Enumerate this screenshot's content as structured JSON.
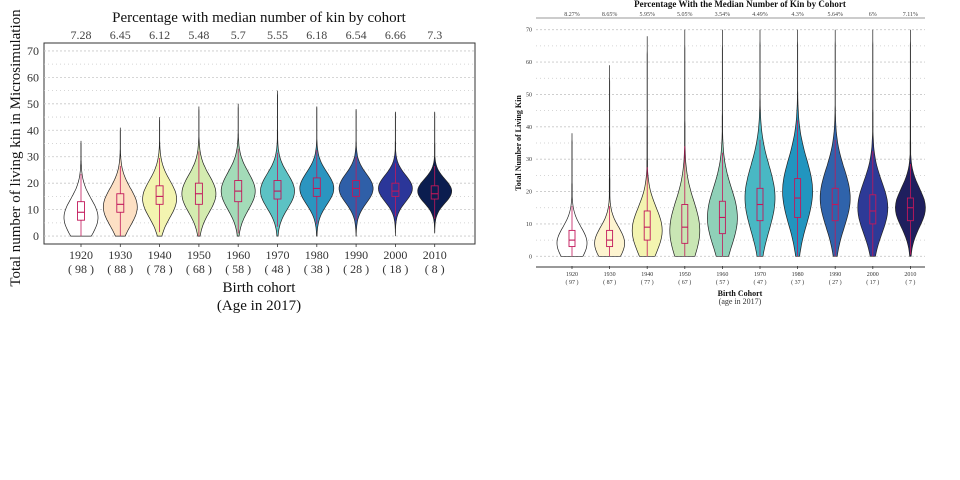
{
  "chart_data": [
    {
      "type": "violin",
      "title": "Percentage with median number of kin by cohort",
      "xlabel": "Birth cohort",
      "xlabel_sub": "(Age in 2017)",
      "ylabel": "Total number of living kin in Microsimulation",
      "ylim": [
        -3,
        73
      ],
      "yticks": [
        0,
        10,
        20,
        30,
        40,
        50,
        60,
        70
      ],
      "grid": true,
      "categories": [
        "1920",
        "1930",
        "1940",
        "1950",
        "1960",
        "1970",
        "1980",
        "1990",
        "2000",
        "2010"
      ],
      "ages": [
        "( 98 )",
        "( 88 )",
        "( 78 )",
        "( 68 )",
        "( 58 )",
        "( 48 )",
        "( 38 )",
        "( 28 )",
        "( 18 )",
        "( 8 )"
      ],
      "top_labels": [
        "7.28",
        "6.45",
        "6.12",
        "5.48",
        "5.7",
        "5.55",
        "6.18",
        "6.54",
        "6.66",
        "7.3"
      ],
      "colors": [
        "#ffffff",
        "#fde0c4",
        "#f3f4b0",
        "#d4ecb0",
        "#a3dbb8",
        "#5cc2c4",
        "#2b95c0",
        "#2f5fa8",
        "#2b3699",
        "#0b1d4f"
      ],
      "box_color": "#c2185b",
      "series": [
        {
          "min": 0,
          "q1": 6,
          "median": 9,
          "q3": 13,
          "max": 36,
          "mode": 7,
          "spread": 7
        },
        {
          "min": 0,
          "q1": 9,
          "median": 12,
          "q3": 16,
          "max": 41,
          "mode": 11,
          "spread": 7
        },
        {
          "min": 0,
          "q1": 12,
          "median": 15,
          "q3": 19,
          "max": 45,
          "mode": 14,
          "spread": 7
        },
        {
          "min": 0,
          "q1": 12,
          "median": 16,
          "q3": 20,
          "max": 49,
          "mode": 16,
          "spread": 7
        },
        {
          "min": 0,
          "q1": 13,
          "median": 17,
          "q3": 21,
          "max": 50,
          "mode": 17,
          "spread": 7
        },
        {
          "min": 0,
          "q1": 14,
          "median": 17,
          "q3": 21,
          "max": 55,
          "mode": 17,
          "spread": 6.5
        },
        {
          "min": 0,
          "q1": 15,
          "median": 18,
          "q3": 22,
          "max": 49,
          "mode": 18,
          "spread": 6
        },
        {
          "min": 0,
          "q1": 15,
          "median": 18,
          "q3": 21,
          "max": 48,
          "mode": 18,
          "spread": 5.5
        },
        {
          "min": 0,
          "q1": 15,
          "median": 17,
          "q3": 20,
          "max": 47,
          "mode": 18,
          "spread": 5
        },
        {
          "min": 1,
          "q1": 14,
          "median": 16,
          "q3": 19,
          "max": 47,
          "mode": 17,
          "spread": 4.5
        }
      ]
    },
    {
      "type": "violin",
      "title": "Percentage With the Median Number of Kin by Cohort",
      "xlabel": "Birth Cohort",
      "xlabel_sub": "(age in 2017)",
      "ylabel": "Total Number of Living Kin",
      "ylim": [
        -3,
        73
      ],
      "yticks": [
        0,
        10,
        20,
        30,
        40,
        50,
        60,
        70
      ],
      "grid": true,
      "categories": [
        "1920",
        "1930",
        "1940",
        "1950",
        "1960",
        "1970",
        "1980",
        "1990",
        "2000",
        "2010"
      ],
      "ages": [
        "( 97 )",
        "( 87 )",
        "( 77 )",
        "( 67 )",
        "( 57 )",
        "( 47 )",
        "( 37 )",
        "( 27 )",
        "( 17 )",
        "( 7 )"
      ],
      "top_labels": [
        "8.27%",
        "8.65%",
        "5.95%",
        "5.05%",
        "3.54%",
        "4.49%",
        "4.3%",
        "5.64%",
        "6%",
        "7.11%"
      ],
      "colors": [
        "#ffffff",
        "#fdf4d0",
        "#f3f4b0",
        "#c9e6b4",
        "#8fd0b8",
        "#49b8c4",
        "#2295bf",
        "#2f63ab",
        "#2d3a97",
        "#1f1f5e"
      ],
      "box_color": "#c2185b",
      "series": [
        {
          "min": 0,
          "q1": 3,
          "median": 5,
          "q3": 8,
          "max": 38,
          "mode": 4,
          "spread": 5
        },
        {
          "min": 0,
          "q1": 3,
          "median": 5,
          "q3": 8,
          "max": 59,
          "mode": 4,
          "spread": 5
        },
        {
          "min": 0,
          "q1": 5,
          "median": 9,
          "q3": 14,
          "max": 68,
          "mode": 8,
          "spread": 7
        },
        {
          "min": 0,
          "q1": 4,
          "median": 9,
          "q3": 16,
          "max": 70,
          "mode": 8,
          "spread": 9
        },
        {
          "min": 0,
          "q1": 7,
          "median": 12,
          "q3": 17,
          "max": 70,
          "mode": 12,
          "spread": 9
        },
        {
          "min": 0,
          "q1": 11,
          "median": 16,
          "q3": 21,
          "max": 70,
          "mode": 18,
          "spread": 10
        },
        {
          "min": 0,
          "q1": 12,
          "median": 18,
          "q3": 24,
          "max": 70,
          "mode": 20,
          "spread": 10
        },
        {
          "min": 0,
          "q1": 11,
          "median": 16,
          "q3": 21,
          "max": 70,
          "mode": 18,
          "spread": 9
        },
        {
          "min": 0,
          "q1": 10,
          "median": 14,
          "q3": 19,
          "max": 70,
          "mode": 15,
          "spread": 8
        },
        {
          "min": 0,
          "q1": 11,
          "median": 15,
          "q3": 18,
          "max": 70,
          "mode": 15,
          "spread": 6
        }
      ]
    }
  ]
}
